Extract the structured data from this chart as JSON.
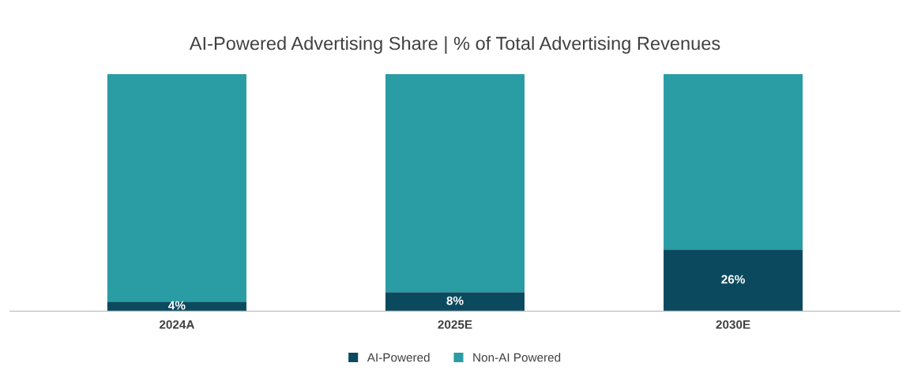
{
  "chart_data": {
    "type": "bar",
    "title": "AI-Powered Advertising Share | % of Total Advertising Revenues",
    "categories": [
      "2024A",
      "2025E",
      "2030E"
    ],
    "stacked": true,
    "series": [
      {
        "name": "AI-Powered",
        "color": "#0b4a5e",
        "values": [
          4,
          8,
          26
        ],
        "value_labels": [
          "4%",
          "8%",
          "26%"
        ]
      },
      {
        "name": "Non-AI Powered",
        "color": "#2a9ca4",
        "values": [
          96,
          92,
          74
        ]
      }
    ],
    "legend": "bottom"
  }
}
